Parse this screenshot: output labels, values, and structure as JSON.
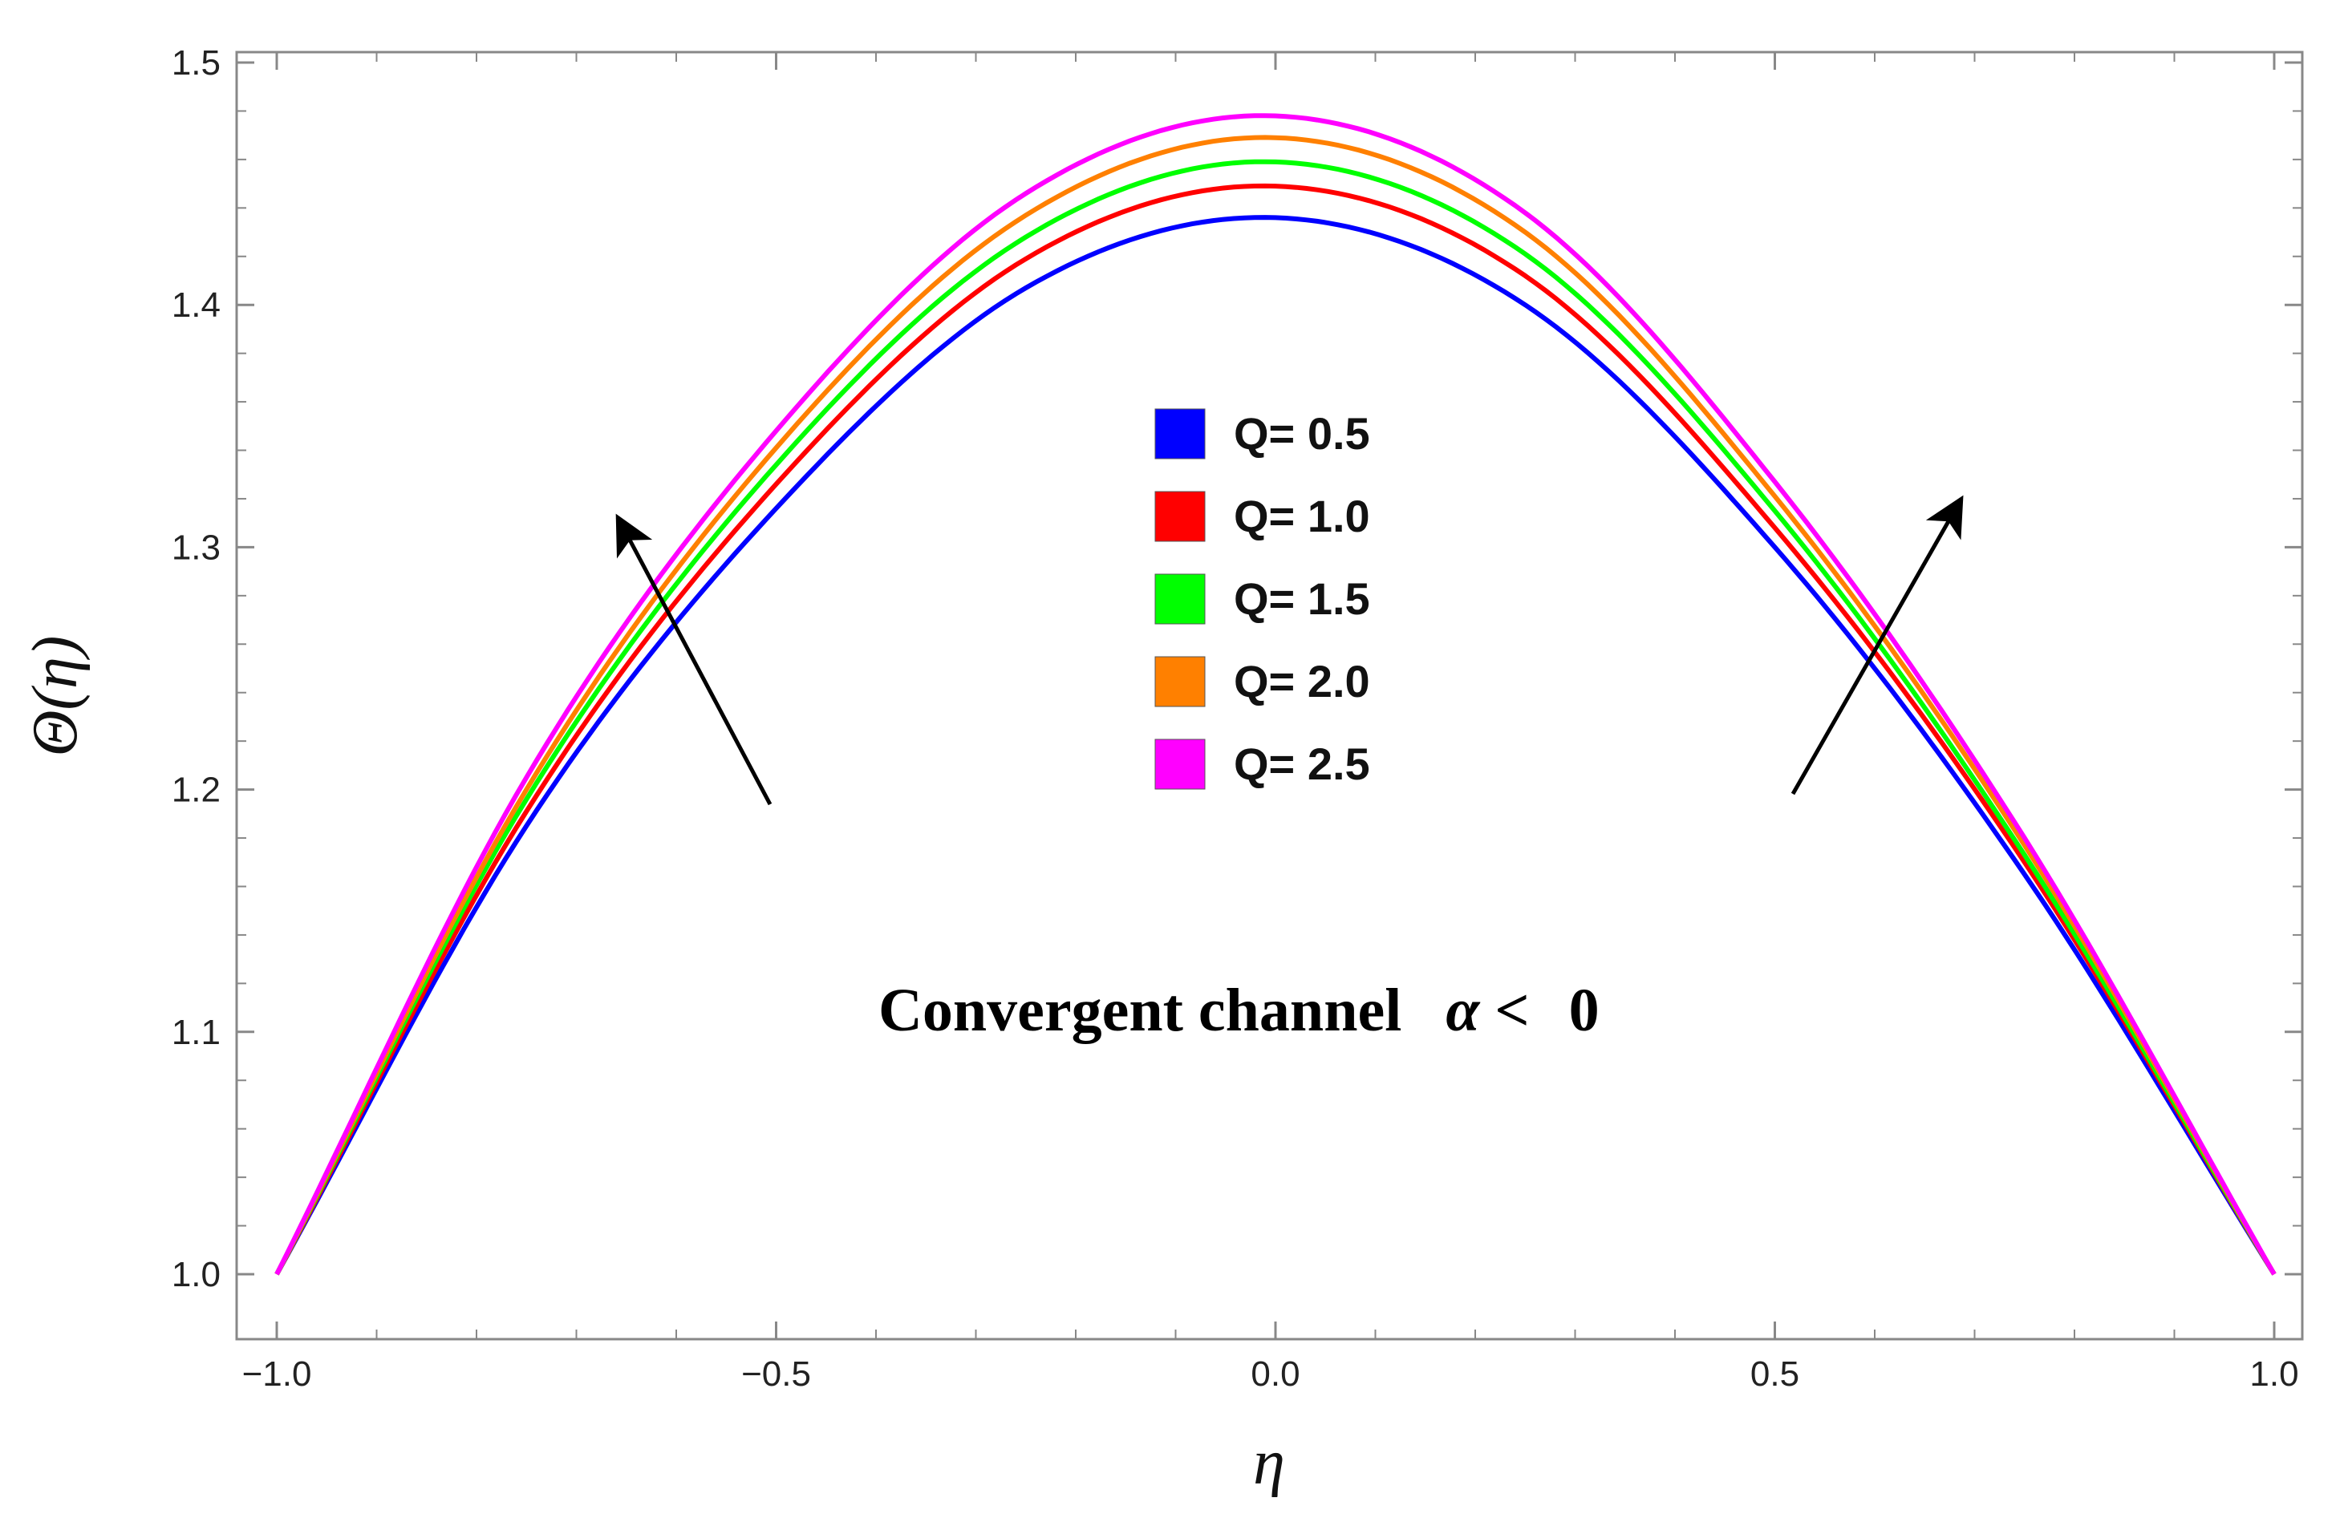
{
  "chart_data": {
    "type": "line",
    "xlabel": "η",
    "ylabel": "Θ(η)",
    "xlim": [
      -1.0,
      1.0
    ],
    "ylim": [
      0.975,
      1.5
    ],
    "x_ticks": [
      -1.0,
      -0.5,
      0.0,
      0.5,
      1.0
    ],
    "x_tick_labels": [
      "−1.0",
      "−0.5",
      "0.0",
      "0.5",
      "1.0"
    ],
    "y_ticks": [
      1.0,
      1.1,
      1.2,
      1.3,
      1.4,
      1.5
    ],
    "y_tick_labels": [
      "1.0",
      "1.1",
      "1.2",
      "1.3",
      "1.4",
      "1.5"
    ],
    "grid": false,
    "legend_position": "center",
    "series": [
      {
        "name": "Q= 0.5",
        "color": "#0000ff",
        "peak": 1.436,
        "x": [
          -1.0,
          -0.75,
          -0.5,
          -0.25,
          0.0,
          0.25,
          0.5,
          0.75,
          1.0
        ],
        "y": [
          1.0,
          1.185,
          1.316,
          1.407,
          1.436,
          1.4,
          1.3,
          1.165,
          1.0
        ]
      },
      {
        "name": "Q= 1.0",
        "color": "#ff0000",
        "peak": 1.449,
        "x": [
          -1.0,
          -0.75,
          -0.5,
          -0.25,
          0.0,
          0.25,
          0.5,
          0.75,
          1.0
        ],
        "y": [
          1.0,
          1.191,
          1.326,
          1.419,
          1.449,
          1.412,
          1.308,
          1.17,
          1.0
        ]
      },
      {
        "name": "Q= 1.5",
        "color": "#00ff00",
        "peak": 1.459,
        "x": [
          -1.0,
          -0.75,
          -0.5,
          -0.25,
          0.0,
          0.25,
          0.5,
          0.75,
          1.0
        ],
        "y": [
          1.0,
          1.196,
          1.334,
          1.428,
          1.459,
          1.421,
          1.315,
          1.173,
          1.0
        ]
      },
      {
        "name": "Q= 2.0",
        "color": "#ff8000",
        "peak": 1.469,
        "x": [
          -1.0,
          -0.75,
          -0.5,
          -0.25,
          0.0,
          0.25,
          0.5,
          0.75,
          1.0
        ],
        "y": [
          1.0,
          1.2,
          1.341,
          1.437,
          1.469,
          1.43,
          1.321,
          1.177,
          1.0
        ]
      },
      {
        "name": "Q= 2.5",
        "color": "#ff00ff",
        "peak": 1.478,
        "x": [
          -1.0,
          -0.75,
          -0.5,
          -0.25,
          0.0,
          0.25,
          0.5,
          0.75,
          1.0
        ],
        "y": [
          1.0,
          1.205,
          1.348,
          1.446,
          1.478,
          1.438,
          1.327,
          1.18,
          1.0
        ]
      }
    ],
    "annotations": {
      "text": "Convergent channel",
      "symbol": "α <",
      "value": "0"
    }
  }
}
